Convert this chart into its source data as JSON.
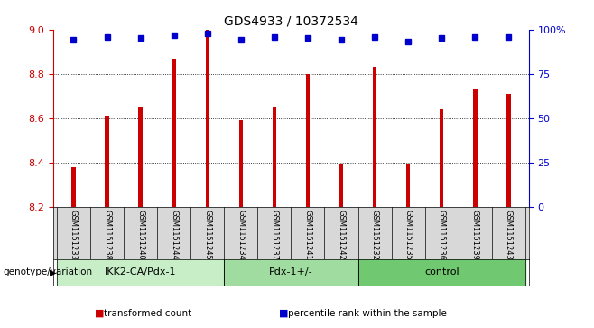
{
  "title": "GDS4933 / 10372534",
  "samples": [
    "GSM1151233",
    "GSM1151238",
    "GSM1151240",
    "GSM1151244",
    "GSM1151245",
    "GSM1151234",
    "GSM1151237",
    "GSM1151241",
    "GSM1151242",
    "GSM1151232",
    "GSM1151235",
    "GSM1151236",
    "GSM1151239",
    "GSM1151243"
  ],
  "bar_values": [
    8.38,
    8.61,
    8.65,
    8.87,
    9.0,
    8.59,
    8.65,
    8.8,
    8.39,
    8.83,
    8.39,
    8.64,
    8.73,
    8.71
  ],
  "percentile_values": [
    94,
    96,
    95,
    97,
    98,
    94,
    96,
    95,
    94,
    96,
    93,
    95,
    96,
    96
  ],
  "ylim_left": [
    8.2,
    9.0
  ],
  "ylim_right": [
    0,
    100
  ],
  "yticks_left": [
    8.2,
    8.4,
    8.6,
    8.8,
    9.0
  ],
  "yticks_right": [
    0,
    25,
    50,
    75,
    100
  ],
  "ytick_labels_right": [
    "0",
    "25",
    "50",
    "75",
    "100%"
  ],
  "groups": [
    {
      "label": "IKK2-CA/Pdx-1",
      "start": 0,
      "end": 5,
      "color": "#c8eec8"
    },
    {
      "label": "Pdx-1+/-",
      "start": 5,
      "end": 9,
      "color": "#a0dca0"
    },
    {
      "label": "control",
      "start": 9,
      "end": 14,
      "color": "#70c870"
    }
  ],
  "bar_color": "#cc0000",
  "percentile_color": "#0000cc",
  "bar_width": 0.12,
  "bg_color": "#ffffff",
  "tick_label_color_left": "#cc0000",
  "tick_label_color_right": "#0000cc",
  "legend_items": [
    {
      "label": "transformed count",
      "color": "#cc0000"
    },
    {
      "label": "percentile rank within the sample",
      "color": "#0000cc"
    }
  ],
  "genotype_label": "genotype/variation",
  "grid_dotted_at": [
    8.4,
    8.6,
    8.8
  ],
  "xlim": [
    -0.6,
    13.6
  ]
}
